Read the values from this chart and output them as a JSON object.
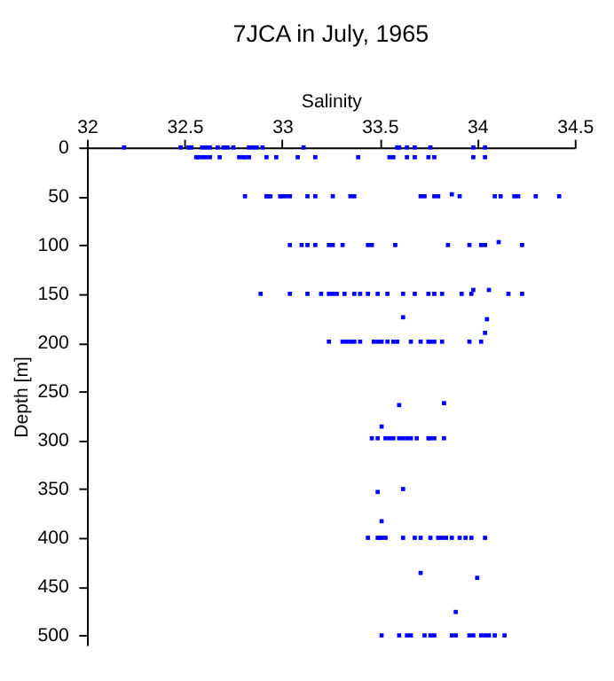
{
  "chart_data": {
    "type": "scatter",
    "title": "7JCA in July, 1965",
    "xlabel": "Salinity",
    "ylabel": "Depth [m]",
    "xlim": [
      32,
      34.5
    ],
    "xticks": [
      32,
      32.5,
      33,
      33.5,
      34,
      34.5
    ],
    "ylim": [
      510,
      0
    ],
    "yticks": [
      0,
      50,
      100,
      150,
      200,
      250,
      300,
      350,
      400,
      450,
      500
    ],
    "marker": "square",
    "grid": false,
    "series": [
      {
        "color": "#0000ff",
        "x": [
          32.19,
          32.48,
          32.52,
          32.535,
          32.59,
          32.61,
          32.63,
          32.67,
          32.7,
          32.72,
          32.75,
          32.83,
          32.85,
          32.87,
          32.9,
          33.11,
          33.59,
          33.6,
          33.64,
          33.68,
          33.76,
          33.98,
          34.04,
          32.56,
          32.57,
          32.59,
          32.61,
          32.63,
          32.68,
          32.78,
          32.8,
          32.81,
          32.83,
          32.92,
          32.97,
          33.08,
          33.17,
          33.39,
          33.55,
          33.57,
          33.64,
          33.68,
          33.75,
          33.78,
          33.98,
          34.04,
          32.81,
          32.92,
          32.93,
          32.94,
          32.99,
          33.0,
          33.02,
          33.04,
          33.13,
          33.17,
          33.26,
          33.35,
          33.37,
          33.71,
          33.73,
          33.78,
          33.8,
          33.87,
          33.91,
          34.09,
          34.12,
          34.19,
          34.21,
          34.3,
          34.42,
          33.04,
          33.1,
          33.13,
          33.17,
          33.24,
          33.26,
          33.31,
          33.44,
          33.46,
          33.58,
          33.85,
          33.96,
          34.02,
          34.04,
          34.11,
          34.23,
          32.89,
          33.04,
          33.13,
          33.2,
          33.24,
          33.26,
          33.28,
          33.32,
          33.37,
          33.4,
          33.44,
          33.49,
          33.54,
          33.62,
          33.68,
          33.75,
          33.78,
          33.82,
          33.92,
          33.97,
          33.98,
          34.06,
          34.16,
          34.23,
          33.62,
          34.05,
          34.04,
          33.24,
          33.31,
          33.33,
          33.35,
          33.37,
          33.4,
          33.47,
          33.49,
          33.51,
          33.54,
          33.57,
          33.59,
          33.66,
          33.71,
          33.75,
          33.76,
          33.78,
          33.82,
          33.96,
          34.02,
          33.6,
          33.83,
          33.51,
          33.46,
          33.49,
          33.53,
          33.55,
          33.57,
          33.6,
          33.62,
          33.64,
          33.66,
          33.69,
          33.75,
          33.76,
          33.78,
          33.83,
          33.49,
          33.62,
          33.51,
          33.44,
          33.49,
          33.5,
          33.51,
          33.53,
          33.62,
          33.68,
          33.71,
          33.76,
          33.8,
          33.82,
          33.84,
          33.87,
          33.91,
          33.94,
          33.97,
          34.04,
          33.71,
          34.0,
          33.89,
          33.51,
          33.6,
          33.64,
          33.66,
          33.73,
          33.76,
          33.78,
          33.87,
          33.89,
          33.96,
          33.98,
          34.02,
          34.04,
          34.06,
          34.09,
          34.14
        ],
        "values": [
          0,
          0,
          0,
          0,
          0,
          0,
          0,
          0,
          0,
          0,
          0,
          0,
          0,
          0,
          0,
          0,
          0,
          0,
          0,
          0,
          0,
          0,
          0,
          10,
          10,
          10,
          10,
          10,
          10,
          10,
          10,
          10,
          10,
          10,
          10,
          10,
          10,
          10,
          10,
          10,
          10,
          10,
          10,
          10,
          10,
          10,
          50,
          50,
          50,
          50,
          50,
          50,
          50,
          50,
          50,
          50,
          50,
          50,
          50,
          50,
          50,
          50,
          50,
          48,
          50,
          50,
          50,
          50,
          50,
          50,
          50,
          100,
          100,
          100,
          100,
          100,
          100,
          100,
          100,
          100,
          100,
          100,
          100,
          100,
          100,
          97,
          100,
          150,
          150,
          150,
          150,
          150,
          150,
          150,
          150,
          150,
          150,
          150,
          150,
          150,
          150,
          150,
          150,
          150,
          150,
          150,
          150,
          146,
          146,
          150,
          150,
          174,
          176,
          190,
          199,
          199,
          199,
          199,
          199,
          199,
          199,
          199,
          199,
          199,
          199,
          199,
          199,
          199,
          199,
          199,
          199,
          199,
          199,
          199,
          264,
          262,
          286,
          298,
          298,
          298,
          298,
          298,
          298,
          298,
          298,
          298,
          298,
          298,
          298,
          298,
          298,
          353,
          350,
          383,
          400,
          400,
          400,
          400,
          400,
          400,
          400,
          400,
          400,
          400,
          400,
          400,
          400,
          400,
          400,
          400,
          400,
          436,
          441,
          476,
          500,
          500,
          500,
          500,
          500,
          500,
          500,
          500,
          500,
          500,
          500,
          500,
          500,
          500,
          500,
          500
        ]
      }
    ]
  }
}
